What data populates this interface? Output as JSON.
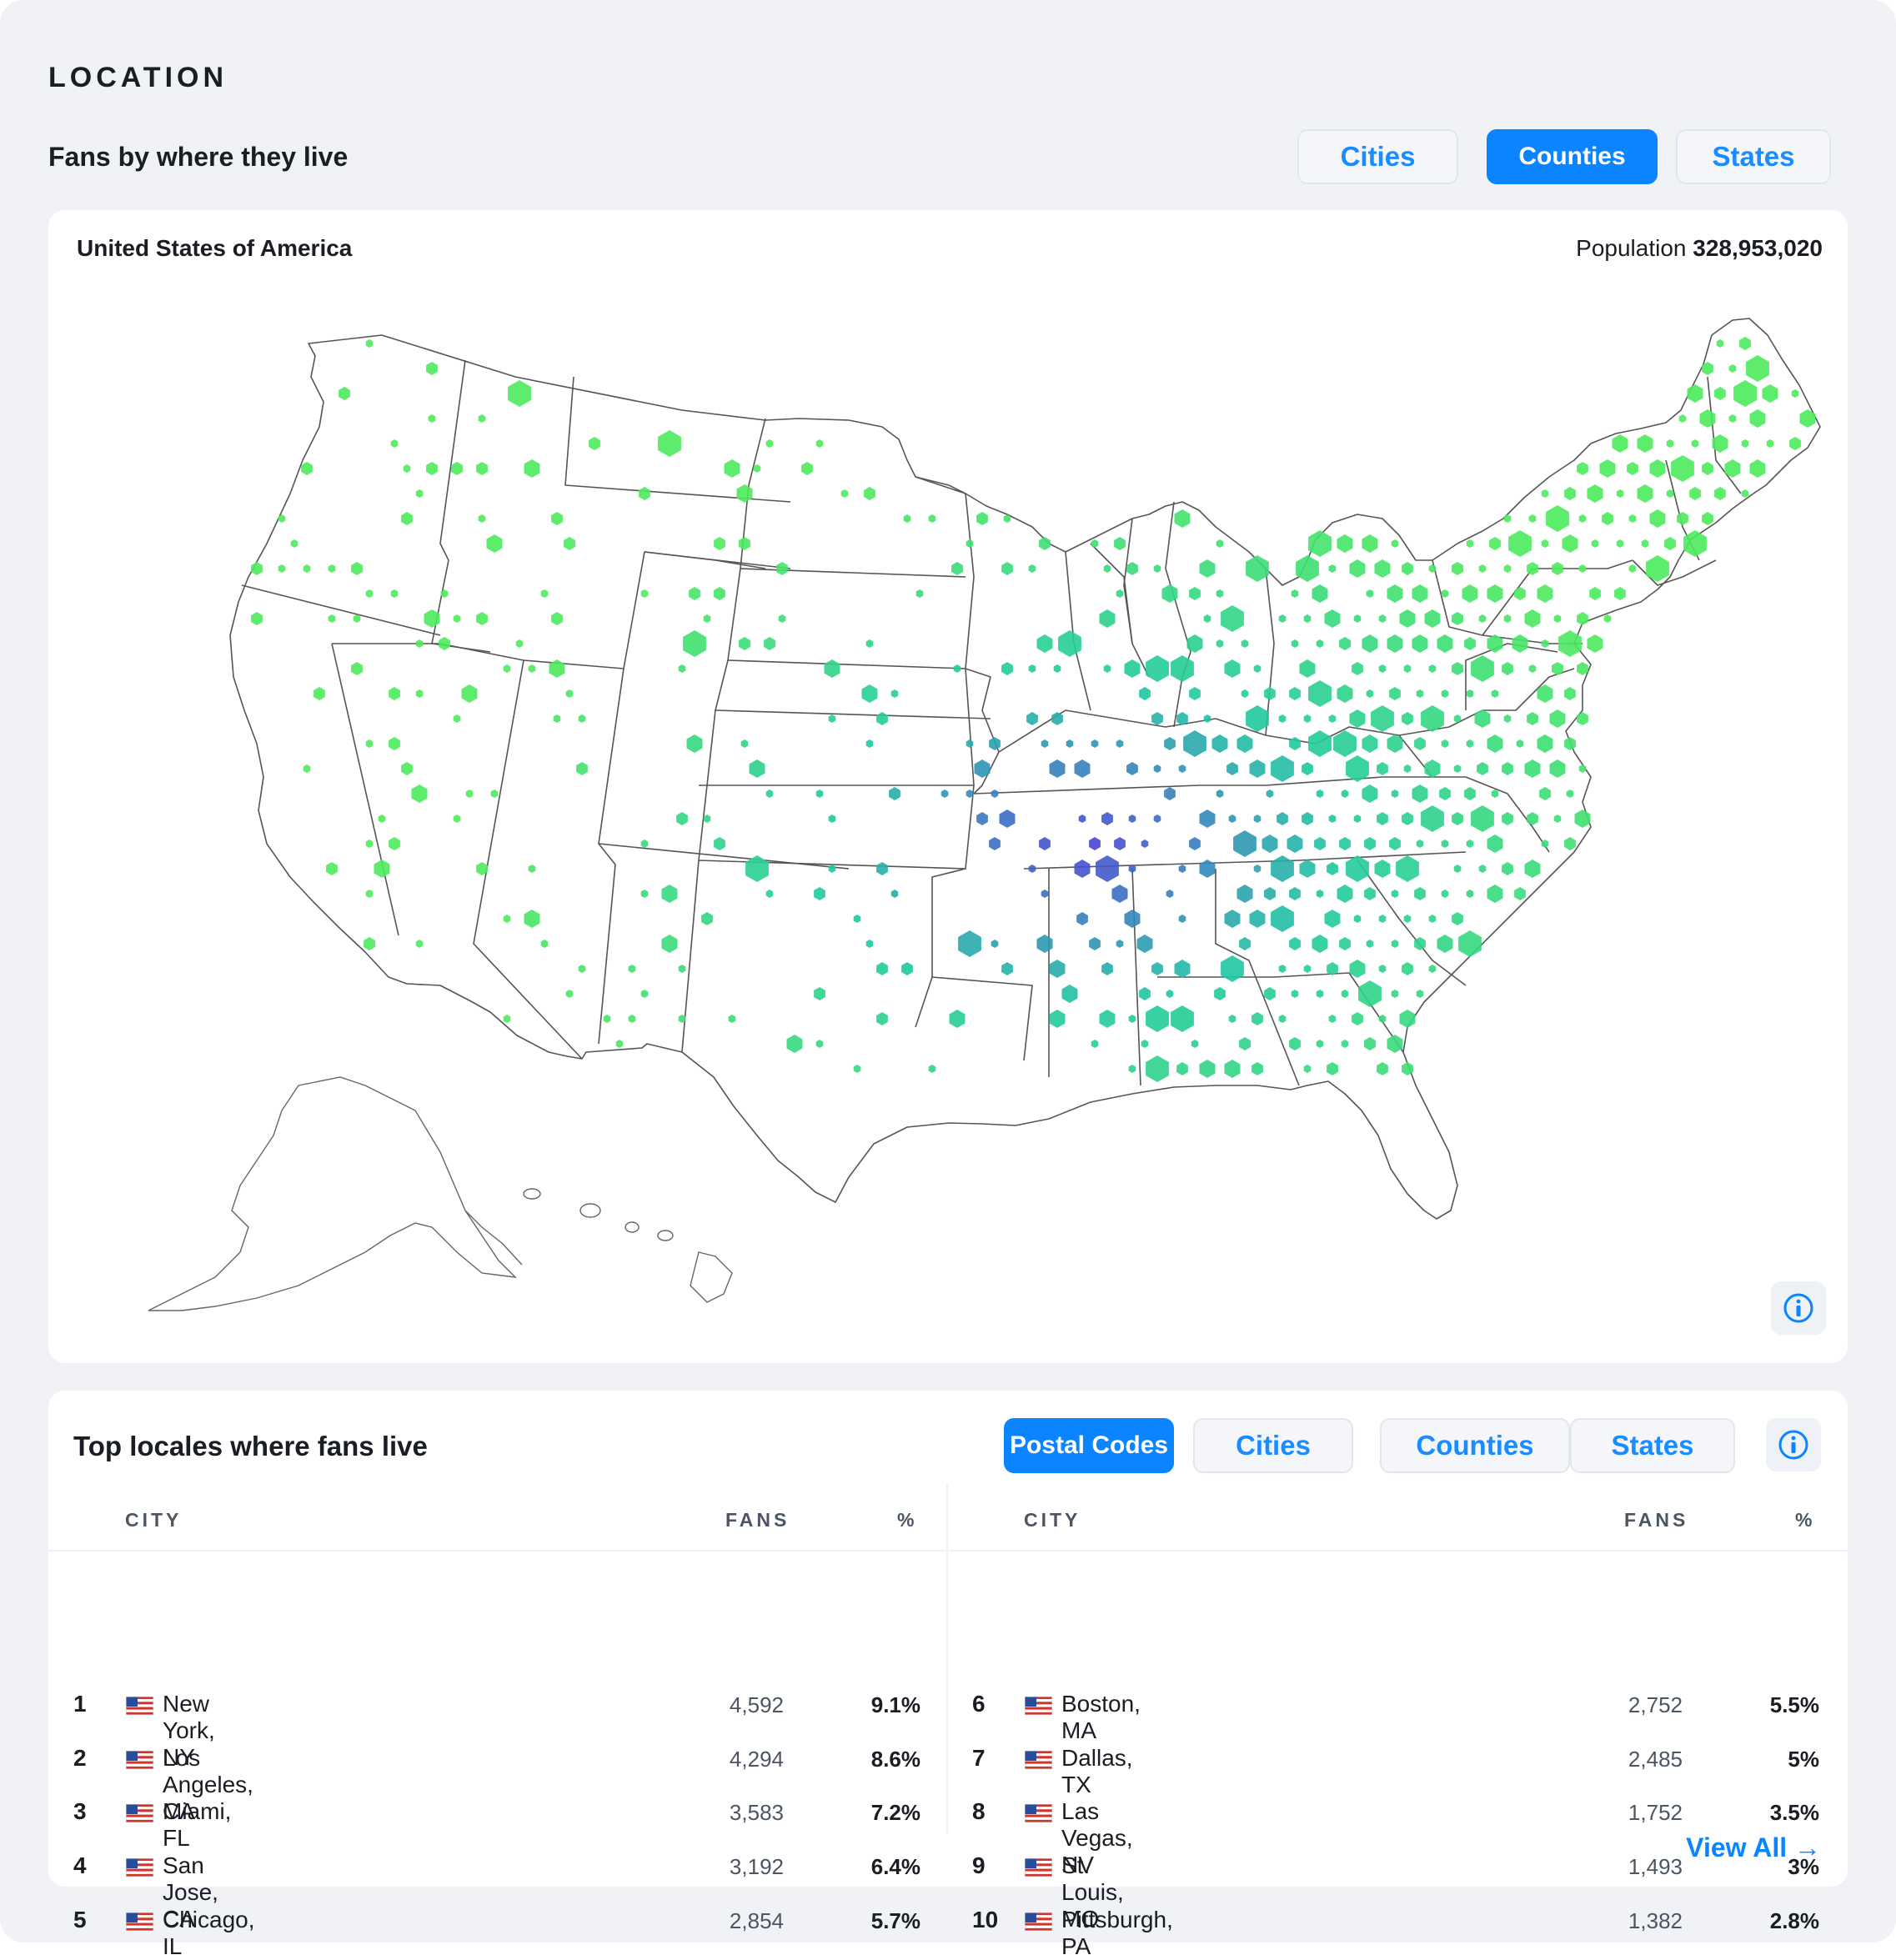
{
  "section": {
    "title": "LOCATION"
  },
  "map_header": {
    "subtitle": "Fans by where they live",
    "tabs": [
      "Cities",
      "Counties",
      "States"
    ],
    "active_tab": "Counties"
  },
  "map": {
    "country": "United States of America",
    "population_label": "Population",
    "population_value": "328,953,020",
    "color_scale": {
      "high": "#4dea5c",
      "mid": "#1fc8a0",
      "low": "#4a3fd6"
    }
  },
  "top_locales": {
    "title": "Top locales where fans live",
    "tabs": [
      "Postal Codes",
      "Cities",
      "Counties",
      "States"
    ],
    "active_tab": "Postal Codes",
    "columns": {
      "city": "CITY",
      "fans": "FANS",
      "pct": "%"
    },
    "rows": [
      {
        "rank": "1",
        "city": "New York, NY",
        "fans": "4,592",
        "pct": "9.1%"
      },
      {
        "rank": "2",
        "city": "Los Angeles, CA",
        "fans": "4,294",
        "pct": "8.6%"
      },
      {
        "rank": "3",
        "city": "Miami, FL",
        "fans": "3,583",
        "pct": "7.2%"
      },
      {
        "rank": "4",
        "city": "San Jose, CA",
        "fans": "3,192",
        "pct": "6.4%"
      },
      {
        "rank": "5",
        "city": "Chicago, IL",
        "fans": "2,854",
        "pct": "5.7%"
      },
      {
        "rank": "6",
        "city": "Boston, MA",
        "fans": "2,752",
        "pct": "5.5%"
      },
      {
        "rank": "7",
        "city": "Dallas, TX",
        "fans": "2,485",
        "pct": "5%"
      },
      {
        "rank": "8",
        "city": "Las Vegas, NV",
        "fans": "1,752",
        "pct": "3.5%"
      },
      {
        "rank": "9",
        "city": "St. Louis, MO",
        "fans": "1,493",
        "pct": "3%"
      },
      {
        "rank": "10",
        "city": "Pittsburgh, PA",
        "fans": "1,382",
        "pct": "2.8%"
      }
    ],
    "view_all": "View All →"
  },
  "icons": {
    "info": "info-circle-icon",
    "flag": "us-flag-icon"
  }
}
